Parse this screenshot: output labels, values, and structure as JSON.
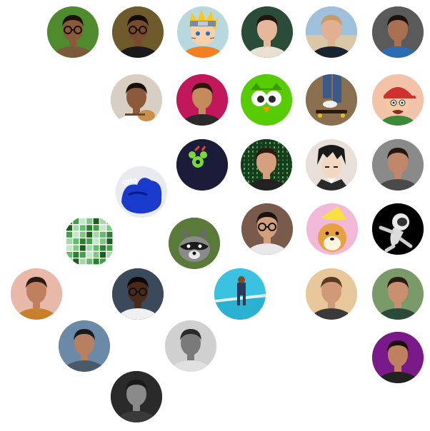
{
  "avatars": [
    {
      "id": "a1",
      "kind": "person",
      "bg": "#4f8a2c",
      "skin": "#8a5a3a",
      "hair": "#1d1208",
      "shirt": "#7a5a3a",
      "glasses": true,
      "icon": "person-glasses-green-bg"
    },
    {
      "id": "a2",
      "kind": "person",
      "bg": "#6e5a2a",
      "skin": "#7a4a2e",
      "hair": "#120b06",
      "shirt": "#1a1a1a",
      "glasses": true,
      "icon": "person-glasses-dark"
    },
    {
      "id": "a3",
      "kind": "naruto",
      "bg": "#b8d8e0",
      "icon": "anime-naruto"
    },
    {
      "id": "a4",
      "kind": "person",
      "bg": "#2c4c3a",
      "skin": "#e6b89a",
      "hair": "#231410",
      "shirt": "#e8e0d0",
      "glasses": false,
      "icon": "person-smiling"
    },
    {
      "id": "a5",
      "kind": "beach",
      "bg": "#7fa7c8",
      "skin": "#e0b090",
      "hair": "#c89a60",
      "shirt": "#1a2430",
      "icon": "person-beach"
    },
    {
      "id": "a6",
      "kind": "person",
      "bg": "#5a5a5a",
      "skin": "#a87050",
      "hair": "#1c120c",
      "shirt": "#2d6cb0",
      "glasses": false,
      "icon": "person-blue-shirt"
    },
    {
      "id": "b1",
      "kind": "guitar",
      "bg": "#d8cfc2",
      "skin": "#8a5a3a",
      "hair": "#1a100a",
      "shirt": "#ffffff",
      "icon": "person-guitar"
    },
    {
      "id": "b2",
      "kind": "person",
      "bg": "#c2185b",
      "skin": "#c48a5a",
      "hair": "#2a1608",
      "shirt": "#2a2a2a",
      "glasses": false,
      "icon": "person-beard-pink-bg"
    },
    {
      "id": "b3",
      "kind": "owl",
      "bg": "#58cc02",
      "icon": "duolingo-owl"
    },
    {
      "id": "b4",
      "kind": "skate",
      "bg": "#8a6e50",
      "icon": "skateboard"
    },
    {
      "id": "b5",
      "kind": "cartoon",
      "bg": "#f2c3a8",
      "icon": "cartoon-boy-cap"
    },
    {
      "id": "c1",
      "kind": "bee",
      "bg": "#1a1c3a",
      "icon": "moon-bee-logo"
    },
    {
      "id": "c2",
      "kind": "matrix",
      "bg": "#1a3a20",
      "skin": "#d6a080",
      "hair": "#2a1a10",
      "shirt": "#222",
      "icon": "person-matrix-bg"
    },
    {
      "id": "c3",
      "kind": "anime",
      "bg": "#e8e0d8",
      "icon": "anime-man"
    },
    {
      "id": "c4",
      "kind": "person",
      "bg": "#8a8a8a",
      "skin": "#c0886a",
      "hair": "#241710",
      "shirt": "#4a4a4a",
      "glasses": false,
      "icon": "person-grey-hoodie"
    },
    {
      "id": "d1",
      "kind": "qrlo",
      "bg": "#e8eaf0",
      "text": "qrlo",
      "icon": "blue-hands"
    },
    {
      "id": "e1",
      "kind": "grid",
      "bg": "#ffffff",
      "icon": "green-grid"
    },
    {
      "id": "e2",
      "kind": "raccoon",
      "bg": "#5a7a3a",
      "icon": "raccoon"
    },
    {
      "id": "e3",
      "kind": "person",
      "bg": "#7a5a4a",
      "skin": "#d2a07a",
      "hair": "#1a1410",
      "shirt": "#e8e8e8",
      "glasses": true,
      "icon": "person-glasses-white-shirt"
    },
    {
      "id": "e4",
      "kind": "dog",
      "bg": "#f2b8d8",
      "icon": "dog-yellow-hat"
    },
    {
      "id": "e5",
      "kind": "astronaut",
      "bg": "#000000",
      "icon": "astronaut"
    },
    {
      "id": "f1",
      "kind": "person",
      "bg": "#e8b8a8",
      "skin": "#c08060",
      "hair": "#2a1a10",
      "shirt": "#c8802a",
      "glasses": false,
      "icon": "person-orange-shirt"
    },
    {
      "id": "f2",
      "kind": "person",
      "bg": "#3a4a5a",
      "skin": "#4a2a18",
      "hair": "#100806",
      "shirt": "#f0f0f0",
      "glasses": true,
      "icon": "person-sunglasses"
    },
    {
      "id": "f3",
      "kind": "pool",
      "bg": "#3ac2e0",
      "icon": "person-pool"
    },
    {
      "id": "f4",
      "kind": "person",
      "bg": "#e8c89a",
      "skin": "#d09a78",
      "hair": "#5a3a20",
      "shirt": "#3a3a3a",
      "glasses": false,
      "icon": "person-bald-beard"
    },
    {
      "id": "f5",
      "kind": "person",
      "bg": "#7a9a6a",
      "skin": "#c89070",
      "hair": "#2a1a10",
      "shirt": "#2a4a3a",
      "glasses": false,
      "icon": "person-outdoor"
    },
    {
      "id": "g1",
      "kind": "person",
      "bg": "#6a8aa8",
      "skin": "#b88060",
      "hair": "#1a1a1a",
      "shirt": "#4a5a6a",
      "glasses": false,
      "icon": "person-standing"
    },
    {
      "id": "g2",
      "kind": "person",
      "bg": "#d0d0d0",
      "skin": "#7a7a7a",
      "hair": "#2a2a2a",
      "shirt": "#e0e0e0",
      "glasses": false,
      "icon": "person-grayscale"
    },
    {
      "id": "g3",
      "kind": "person",
      "bg": "#7a1a8a",
      "skin": "#c08060",
      "hair": "#1a1008",
      "shirt": "#222",
      "glasses": false,
      "icon": "person-purple-bg"
    },
    {
      "id": "h1",
      "kind": "person",
      "bg": "#2a2a2a",
      "skin": "#8a8a8a",
      "hair": "#1a1a1a",
      "shirt": "#3a3a3a",
      "glasses": false,
      "icon": "person-dark-bw"
    }
  ]
}
